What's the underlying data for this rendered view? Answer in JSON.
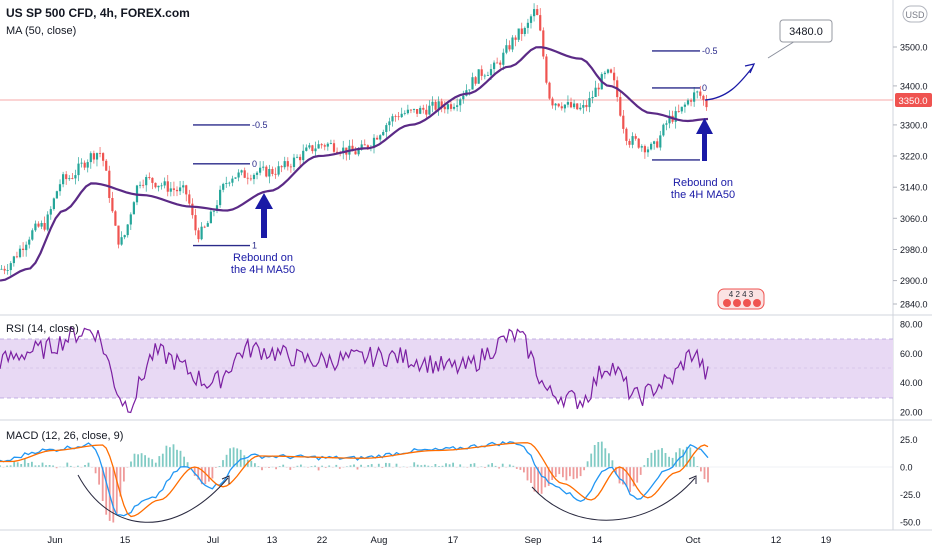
{
  "header": {
    "symbol": "US SP 500 CFD, 4h, FOREX.com",
    "ma_label": "MA (50, close)",
    "currency_button": "USD"
  },
  "colors": {
    "up": "#26a69a",
    "down": "#ef5350",
    "ma": "#5b2a86",
    "rsi": "#7b1fa2",
    "rsi_band": "#e8d9f4",
    "macd": "#2196f3",
    "signal": "#ff6d00",
    "hist_up": "#80cbc4",
    "hist_down": "#ef9a9a",
    "annotation_line": "#2a2a8a",
    "arrow": "#1a1aa6",
    "price_line": "#f7a8a8",
    "price_tag": "#ef5350"
  },
  "price_axis": {
    "ticks": [
      "3500.0",
      "3400.0",
      "3300.0",
      "3220.0",
      "3140.0",
      "3060.0",
      "2980.0",
      "2900.0",
      "2840.0"
    ],
    "current_price": "3350.0"
  },
  "time_axis": {
    "ticks": [
      "Jun",
      "15",
      "Jul",
      "13",
      "22",
      "Aug",
      "17",
      "Sep",
      "14",
      "Oct",
      "12",
      "19"
    ]
  },
  "annotations": {
    "fib_left": {
      "level_top": "-0.5",
      "level_mid": "0",
      "level_bottom": "1"
    },
    "fib_right": {
      "level_top": "-0.5",
      "level_mid": "0"
    },
    "rebound_left": [
      "Rebound on",
      "the 4H MA50"
    ],
    "rebound_right": [
      "Rebound on",
      "the 4H MA50"
    ],
    "target_callout": "3480.0",
    "badge_text": "4 2 4 3"
  },
  "rsi_panel": {
    "label": "RSI (14, close)",
    "ticks": [
      "80.00",
      "60.00",
      "40.00",
      "20.00"
    ]
  },
  "macd_panel": {
    "label": "MACD (12, 26, close, 9)",
    "ticks": [
      "25.0",
      "0.0",
      "-25.0",
      "-50.0"
    ]
  },
  "chart_data": {
    "type": "line",
    "title": "US SP 500 CFD, 4h, FOREX.com",
    "x_periods": [
      "Jun",
      "15",
      "Jul",
      "13",
      "22",
      "Aug",
      "17",
      "Sep",
      "14",
      "Oct"
    ],
    "price_series": {
      "name": "US SP 500 CFD",
      "anchors": [
        {
          "t": 0,
          "v": 2930
        },
        {
          "t": 0.06,
          "v": 3040
        },
        {
          "t": 0.09,
          "v": 3160
        },
        {
          "t": 0.14,
          "v": 3230
        },
        {
          "t": 0.17,
          "v": 3000
        },
        {
          "t": 0.2,
          "v": 3160
        },
        {
          "t": 0.26,
          "v": 3130
        },
        {
          "t": 0.28,
          "v": 3020
        },
        {
          "t": 0.33,
          "v": 3170
        },
        {
          "t": 0.38,
          "v": 3180
        },
        {
          "t": 0.46,
          "v": 3250
        },
        {
          "t": 0.5,
          "v": 3230
        },
        {
          "t": 0.57,
          "v": 3330
        },
        {
          "t": 0.63,
          "v": 3350
        },
        {
          "t": 0.69,
          "v": 3440
        },
        {
          "t": 0.74,
          "v": 3540
        },
        {
          "t": 0.755,
          "v": 3590
        },
        {
          "t": 0.78,
          "v": 3360
        },
        {
          "t": 0.82,
          "v": 3340
        },
        {
          "t": 0.86,
          "v": 3430
        },
        {
          "t": 0.89,
          "v": 3260
        },
        {
          "t": 0.92,
          "v": 3240
        },
        {
          "t": 0.95,
          "v": 3320
        },
        {
          "t": 0.985,
          "v": 3380
        },
        {
          "t": 1,
          "v": 3350
        }
      ]
    },
    "ma50_series": {
      "name": "MA (50, close)",
      "anchors": [
        {
          "t": 0,
          "v": 2900
        },
        {
          "t": 0.04,
          "v": 2930
        },
        {
          "t": 0.09,
          "v": 3080
        },
        {
          "t": 0.13,
          "v": 3150
        },
        {
          "t": 0.2,
          "v": 3120
        },
        {
          "t": 0.27,
          "v": 3090
        },
        {
          "t": 0.32,
          "v": 3080
        },
        {
          "t": 0.38,
          "v": 3130
        },
        {
          "t": 0.45,
          "v": 3220
        },
        {
          "t": 0.52,
          "v": 3240
        },
        {
          "t": 0.58,
          "v": 3300
        },
        {
          "t": 0.66,
          "v": 3380
        },
        {
          "t": 0.72,
          "v": 3450
        },
        {
          "t": 0.76,
          "v": 3500
        },
        {
          "t": 0.82,
          "v": 3470
        },
        {
          "t": 0.86,
          "v": 3400
        },
        {
          "t": 0.92,
          "v": 3330
        },
        {
          "t": 0.97,
          "v": 3310
        },
        {
          "t": 1,
          "v": 3315
        }
      ]
    },
    "projection": {
      "from": 3360,
      "to": 3440
    },
    "fib_levels_left": [
      {
        "label": "-0.5",
        "price": 3300
      },
      {
        "label": "0",
        "price": 3200
      },
      {
        "label": "1",
        "price": 2990
      }
    ],
    "fib_levels_right": [
      {
        "label": "-0.5",
        "price": 3490
      },
      {
        "label": "0",
        "price": 3395
      },
      {
        "label": "",
        "price": 3210
      }
    ],
    "rsi_series": {
      "name": "RSI (14, close)",
      "anchors": [
        {
          "t": 0,
          "v": 55
        },
        {
          "t": 0.05,
          "v": 62
        },
        {
          "t": 0.13,
          "v": 76
        },
        {
          "t": 0.18,
          "v": 25
        },
        {
          "t": 0.22,
          "v": 60
        },
        {
          "t": 0.3,
          "v": 40
        },
        {
          "t": 0.35,
          "v": 63
        },
        {
          "t": 0.45,
          "v": 55
        },
        {
          "t": 0.55,
          "v": 58
        },
        {
          "t": 0.65,
          "v": 50
        },
        {
          "t": 0.73,
          "v": 72
        },
        {
          "t": 0.78,
          "v": 32
        },
        {
          "t": 0.82,
          "v": 28
        },
        {
          "t": 0.86,
          "v": 52
        },
        {
          "t": 0.9,
          "v": 30
        },
        {
          "t": 0.94,
          "v": 40
        },
        {
          "t": 0.98,
          "v": 60
        },
        {
          "t": 1,
          "v": 45
        }
      ]
    },
    "macd_series": {
      "name": "MACD",
      "anchors": [
        {
          "t": 0,
          "v": 5
        },
        {
          "t": 0.06,
          "v": 15
        },
        {
          "t": 0.13,
          "v": 20
        },
        {
          "t": 0.17,
          "v": -45
        },
        {
          "t": 0.21,
          "v": -30
        },
        {
          "t": 0.26,
          "v": 0
        },
        {
          "t": 0.3,
          "v": -18
        },
        {
          "t": 0.35,
          "v": 10
        },
        {
          "t": 0.5,
          "v": 8
        },
        {
          "t": 0.6,
          "v": 15
        },
        {
          "t": 0.73,
          "v": 22
        },
        {
          "t": 0.78,
          "v": -15
        },
        {
          "t": 0.82,
          "v": -30
        },
        {
          "t": 0.86,
          "v": 0
        },
        {
          "t": 0.9,
          "v": -28
        },
        {
          "t": 0.94,
          "v": -5
        },
        {
          "t": 0.98,
          "v": 20
        },
        {
          "t": 1,
          "v": 10
        }
      ]
    }
  }
}
